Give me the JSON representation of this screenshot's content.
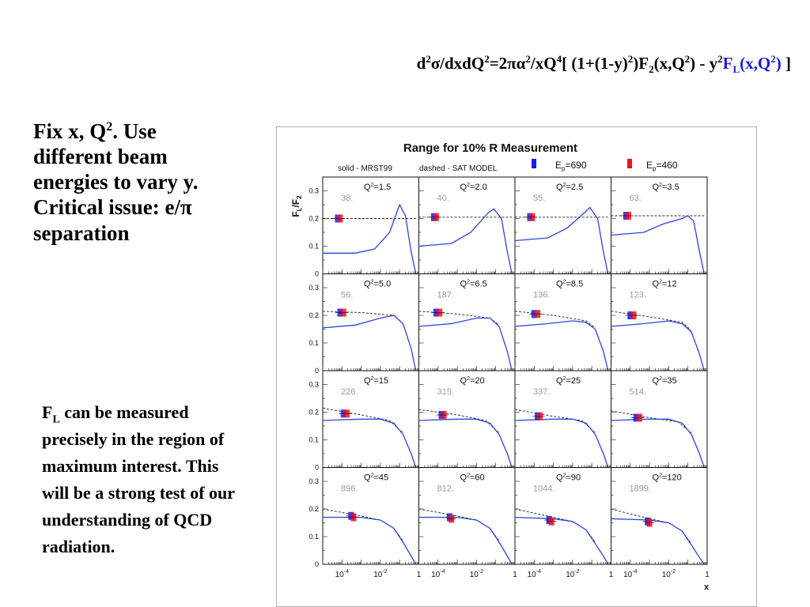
{
  "slide": {
    "formula": {
      "part1": "d",
      "sup1": "2",
      "part2": "σ/dxdQ",
      "sup2": "2",
      "part3": "=2πα",
      "sup3": "2",
      "part4": "/xQ",
      "sup4": "4",
      "part5": "[ (1+(1-y)",
      "sup5": "2",
      "part6": ")F",
      "sub6": "2",
      "part7": "(x,Q",
      "sup7": "2",
      "part8": ") - y",
      "sup8": "2",
      "fl_f": "F",
      "fl_sub": "L",
      "fl_arg": "(x,Q",
      "fl_sup": "2",
      "fl_close": ")",
      "end": " ]"
    },
    "fix_text": {
      "line1a": "Fix x, Q",
      "line1sup": "2",
      "line1b": ".  Use",
      "line2": "different beam",
      "line3": "energies to vary y.",
      "line4": "Critical issue: e/π",
      "line5": "separation"
    },
    "fl_text": {
      "f": "F",
      "sub": "L",
      "rest": " can be measured precisely in the region of maximum interest.  This will be a strong test of our understanding of QCD radiation."
    }
  },
  "colors": {
    "curve": "#2b46d8",
    "beam690": "#1a1aff",
    "beam460": "#ee1122",
    "dashed": "#222222",
    "number": "#999999"
  },
  "chart_data": {
    "type": "line",
    "title": "Range for 10% R Measurement",
    "legend_solid": "solid - MRST99",
    "legend_dashed": "dashed - SAT MODEL",
    "beams": [
      {
        "label": "E",
        "sub": "p",
        "value": "=690"
      },
      {
        "label": "E",
        "sub": "p",
        "value": "=460"
      }
    ],
    "ylabel": {
      "f": "F",
      "fsub": "L",
      "slash": "/F",
      "f2sub": "2"
    },
    "xlabel": "x",
    "xscale": "log",
    "xlim": [
      1e-05,
      1
    ],
    "ylim": [
      0,
      0.35
    ],
    "yticks": [
      "0",
      "0.1",
      "0.2",
      "0.3"
    ],
    "xticks": [
      {
        "base": "10",
        "exp": "-4"
      },
      {
        "base": "10",
        "exp": "-2"
      },
      {
        "base": "1",
        "exp": ""
      }
    ],
    "panels": [
      {
        "q2": "=1.5",
        "number": "38.",
        "x_points": [
          [
            6e-05,
            0.2
          ],
          [
            8e-05,
            0.2
          ]
        ],
        "solid": [
          [
            1e-05,
            0.075
          ],
          [
            0.0005,
            0.075
          ],
          [
            0.005,
            0.09
          ],
          [
            0.03,
            0.15
          ],
          [
            0.1,
            0.25
          ],
          [
            0.2,
            0.21
          ],
          [
            0.4,
            0.08
          ],
          [
            0.7,
            0.0
          ]
        ],
        "dashed": [
          [
            1e-05,
            0.2
          ],
          [
            0.7,
            0.2
          ]
        ]
      },
      {
        "q2": "=2.0",
        "number": "40.",
        "x_points": [
          [
            6e-05,
            0.205
          ],
          [
            8e-05,
            0.205
          ]
        ],
        "solid": [
          [
            1e-05,
            0.1
          ],
          [
            0.0005,
            0.11
          ],
          [
            0.005,
            0.15
          ],
          [
            0.04,
            0.22
          ],
          [
            0.08,
            0.235
          ],
          [
            0.2,
            0.2
          ],
          [
            0.4,
            0.08
          ],
          [
            0.7,
            0.0
          ]
        ],
        "dashed": [
          [
            1e-05,
            0.205
          ],
          [
            0.7,
            0.205
          ]
        ]
      },
      {
        "q2": "=2.5",
        "number": "55.",
        "x_points": [
          [
            6e-05,
            0.205
          ],
          [
            8e-05,
            0.205
          ]
        ],
        "solid": [
          [
            1e-05,
            0.12
          ],
          [
            0.0005,
            0.13
          ],
          [
            0.005,
            0.165
          ],
          [
            0.04,
            0.22
          ],
          [
            0.08,
            0.24
          ],
          [
            0.2,
            0.2
          ],
          [
            0.4,
            0.08
          ],
          [
            0.7,
            0.0
          ]
        ],
        "dashed": [
          [
            1e-05,
            0.205
          ],
          [
            0.7,
            0.205
          ]
        ]
      },
      {
        "q2": "=3.5",
        "number": "63.",
        "x_points": [
          [
            6e-05,
            0.21
          ],
          [
            8e-05,
            0.21
          ]
        ],
        "solid": [
          [
            1e-05,
            0.14
          ],
          [
            0.0005,
            0.15
          ],
          [
            0.005,
            0.18
          ],
          [
            0.05,
            0.2
          ],
          [
            0.1,
            0.21
          ],
          [
            0.2,
            0.19
          ],
          [
            0.4,
            0.08
          ],
          [
            0.7,
            0.0
          ]
        ],
        "dashed": [
          [
            1e-05,
            0.21
          ],
          [
            0.7,
            0.21
          ]
        ]
      },
      {
        "q2": "=5.0",
        "number": "56.",
        "x_points": [
          [
            8e-05,
            0.21
          ],
          [
            0.00012,
            0.21
          ]
        ],
        "solid": [
          [
            1e-05,
            0.155
          ],
          [
            0.0005,
            0.165
          ],
          [
            0.01,
            0.19
          ],
          [
            0.05,
            0.2
          ],
          [
            0.15,
            0.17
          ],
          [
            0.4,
            0.08
          ],
          [
            0.7,
            0.0
          ]
        ],
        "dashed": [
          [
            1e-05,
            0.215
          ],
          [
            0.001,
            0.21
          ],
          [
            0.05,
            0.2
          ],
          [
            0.15,
            0.17
          ]
        ]
      },
      {
        "q2": "=6.5",
        "number": "187.",
        "x_points": [
          [
            8e-05,
            0.21
          ],
          [
            0.00012,
            0.21
          ]
        ],
        "solid": [
          [
            1e-05,
            0.16
          ],
          [
            0.0005,
            0.17
          ],
          [
            0.01,
            0.19
          ],
          [
            0.05,
            0.19
          ],
          [
            0.15,
            0.16
          ],
          [
            0.4,
            0.07
          ],
          [
            0.7,
            0.0
          ]
        ],
        "dashed": [
          [
            1e-05,
            0.215
          ],
          [
            0.001,
            0.205
          ],
          [
            0.05,
            0.19
          ],
          [
            0.15,
            0.165
          ]
        ]
      },
      {
        "q2": "=8.5",
        "number": "136.",
        "x_points": [
          [
            0.0001,
            0.205
          ],
          [
            0.00015,
            0.205
          ]
        ],
        "solid": [
          [
            1e-05,
            0.16
          ],
          [
            0.0005,
            0.17
          ],
          [
            0.01,
            0.18
          ],
          [
            0.05,
            0.175
          ],
          [
            0.15,
            0.15
          ],
          [
            0.4,
            0.07
          ],
          [
            0.7,
            0.0
          ]
        ],
        "dashed": [
          [
            1e-05,
            0.215
          ],
          [
            0.001,
            0.2
          ],
          [
            0.05,
            0.18
          ],
          [
            0.15,
            0.155
          ]
        ]
      },
      {
        "q2": "=12",
        "number": "123.",
        "x_points": [
          [
            0.0001,
            0.2
          ],
          [
            0.00015,
            0.2
          ]
        ],
        "solid": [
          [
            1e-05,
            0.16
          ],
          [
            0.0005,
            0.17
          ],
          [
            0.01,
            0.18
          ],
          [
            0.05,
            0.17
          ],
          [
            0.15,
            0.14
          ],
          [
            0.4,
            0.06
          ],
          [
            0.7,
            0.0
          ]
        ],
        "dashed": [
          [
            1e-05,
            0.215
          ],
          [
            0.001,
            0.195
          ],
          [
            0.05,
            0.175
          ],
          [
            0.15,
            0.145
          ]
        ]
      },
      {
        "q2": "=15",
        "number": "226.",
        "x_points": [
          [
            0.00012,
            0.195
          ],
          [
            0.00018,
            0.195
          ]
        ],
        "solid": [
          [
            1e-05,
            0.17
          ],
          [
            0.001,
            0.175
          ],
          [
            0.01,
            0.175
          ],
          [
            0.05,
            0.16
          ],
          [
            0.15,
            0.12
          ],
          [
            0.4,
            0.05
          ],
          [
            0.7,
            0.0
          ]
        ],
        "dashed": [
          [
            1e-05,
            0.215
          ],
          [
            0.001,
            0.19
          ],
          [
            0.03,
            0.17
          ],
          [
            0.15,
            0.125
          ]
        ]
      },
      {
        "q2": "=20",
        "number": "315.",
        "x_points": [
          [
            0.00015,
            0.19
          ],
          [
            0.0002,
            0.19
          ]
        ],
        "solid": [
          [
            1e-05,
            0.17
          ],
          [
            0.001,
            0.175
          ],
          [
            0.01,
            0.175
          ],
          [
            0.05,
            0.16
          ],
          [
            0.15,
            0.12
          ],
          [
            0.4,
            0.05
          ],
          [
            0.7,
            0.0
          ]
        ],
        "dashed": [
          [
            1e-05,
            0.21
          ],
          [
            0.001,
            0.19
          ],
          [
            0.03,
            0.17
          ],
          [
            0.15,
            0.125
          ]
        ]
      },
      {
        "q2": "=25",
        "number": "337.",
        "x_points": [
          [
            0.00015,
            0.185
          ],
          [
            0.0002,
            0.185
          ]
        ],
        "solid": [
          [
            1e-05,
            0.17
          ],
          [
            0.001,
            0.175
          ],
          [
            0.01,
            0.175
          ],
          [
            0.05,
            0.16
          ],
          [
            0.15,
            0.12
          ],
          [
            0.4,
            0.05
          ],
          [
            0.7,
            0.0
          ]
        ],
        "dashed": [
          [
            1e-05,
            0.21
          ],
          [
            0.001,
            0.185
          ],
          [
            0.03,
            0.17
          ],
          [
            0.15,
            0.125
          ]
        ]
      },
      {
        "q2": "=35",
        "number": "514.",
        "x_points": [
          [
            0.0002,
            0.18
          ],
          [
            0.0003,
            0.18
          ]
        ],
        "solid": [
          [
            1e-05,
            0.17
          ],
          [
            0.001,
            0.175
          ],
          [
            0.01,
            0.175
          ],
          [
            0.05,
            0.16
          ],
          [
            0.15,
            0.12
          ],
          [
            0.4,
            0.05
          ],
          [
            0.7,
            0.0
          ]
        ],
        "dashed": [
          [
            1e-05,
            0.205
          ],
          [
            0.001,
            0.18
          ],
          [
            0.03,
            0.165
          ],
          [
            0.15,
            0.125
          ]
        ]
      },
      {
        "q2": "=45",
        "number": "896.",
        "x_points": [
          [
            0.0003,
            0.175
          ],
          [
            0.0004,
            0.17
          ]
        ],
        "solid": [
          [
            1e-05,
            0.17
          ],
          [
            0.001,
            0.17
          ],
          [
            0.01,
            0.16
          ],
          [
            0.05,
            0.13
          ],
          [
            0.15,
            0.08
          ],
          [
            0.4,
            0.03
          ],
          [
            0.7,
            0.0
          ]
        ],
        "dashed": [
          [
            1e-05,
            0.2
          ],
          [
            0.001,
            0.175
          ],
          [
            0.01,
            0.16
          ],
          [
            0.05,
            0.13
          ],
          [
            0.15,
            0.085
          ]
        ]
      },
      {
        "q2": "=60",
        "number": "812.",
        "x_points": [
          [
            0.0004,
            0.17
          ],
          [
            0.0005,
            0.165
          ]
        ],
        "solid": [
          [
            1e-05,
            0.17
          ],
          [
            0.001,
            0.17
          ],
          [
            0.01,
            0.16
          ],
          [
            0.05,
            0.13
          ],
          [
            0.15,
            0.08
          ],
          [
            0.4,
            0.03
          ],
          [
            0.7,
            0.0
          ]
        ],
        "dashed": [
          [
            1e-05,
            0.2
          ],
          [
            0.001,
            0.175
          ],
          [
            0.01,
            0.16
          ],
          [
            0.05,
            0.13
          ],
          [
            0.15,
            0.085
          ]
        ]
      },
      {
        "q2": "=90",
        "number": "1044.",
        "x_points": [
          [
            0.0006,
            0.16
          ],
          [
            0.0008,
            0.155
          ]
        ],
        "solid": [
          [
            1e-05,
            0.17
          ],
          [
            0.001,
            0.165
          ],
          [
            0.01,
            0.155
          ],
          [
            0.05,
            0.125
          ],
          [
            0.15,
            0.075
          ],
          [
            0.4,
            0.03
          ],
          [
            0.7,
            0.0
          ]
        ],
        "dashed": [
          [
            1e-05,
            0.2
          ],
          [
            0.001,
            0.17
          ],
          [
            0.01,
            0.155
          ],
          [
            0.05,
            0.125
          ],
          [
            0.15,
            0.08
          ]
        ]
      },
      {
        "q2": "=120",
        "number": "1899.",
        "x_points": [
          [
            0.0008,
            0.155
          ],
          [
            0.001,
            0.15
          ]
        ],
        "solid": [
          [
            1e-05,
            0.165
          ],
          [
            0.001,
            0.16
          ],
          [
            0.01,
            0.15
          ],
          [
            0.05,
            0.12
          ],
          [
            0.15,
            0.07
          ],
          [
            0.4,
            0.025
          ],
          [
            0.7,
            0.0
          ]
        ],
        "dashed": [
          [
            1e-05,
            0.2
          ],
          [
            0.001,
            0.165
          ],
          [
            0.01,
            0.15
          ],
          [
            0.05,
            0.12
          ],
          [
            0.15,
            0.075
          ]
        ]
      }
    ]
  }
}
